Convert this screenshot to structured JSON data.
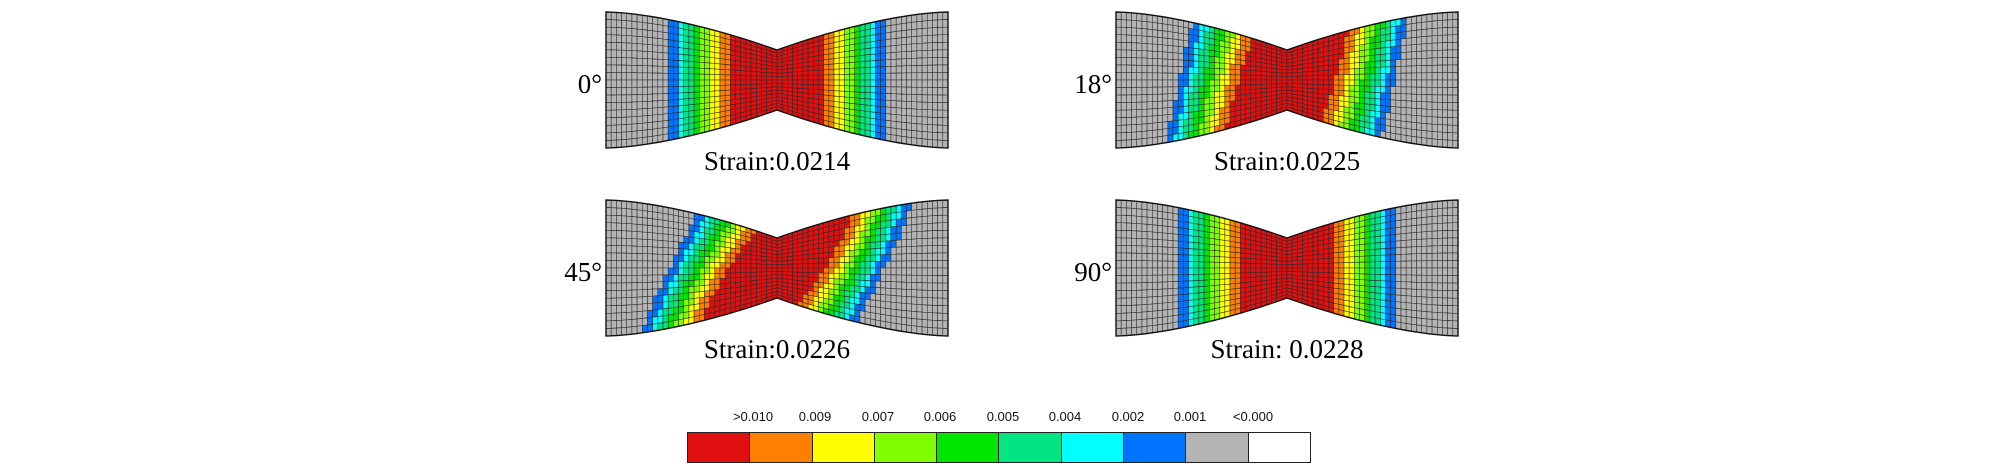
{
  "panels": [
    {
      "angle": "0°",
      "strain_label": "Strain:0.0214",
      "skew": 0
    },
    {
      "angle": "18°",
      "strain_label": "Strain:0.0225",
      "skew": 0.35
    },
    {
      "angle": "45°",
      "strain_label": "Strain:0.0226",
      "skew": 0.75
    },
    {
      "angle": "90°",
      "strain_label": "Strain: 0.0228",
      "skew": 0
    }
  ],
  "legend": {
    "ticks": [
      ">0.010",
      "0.009",
      "0.007",
      "0.006",
      "0.005",
      "0.004",
      "0.002",
      "0.001",
      "<0.000"
    ],
    "colors": [
      "#e01010",
      "#ff7f00",
      "#ffff00",
      "#80ff00",
      "#00e600",
      "#00e680",
      "#00ffff",
      "#0073ff",
      "#b4b4b4",
      "#ffffff"
    ]
  }
}
